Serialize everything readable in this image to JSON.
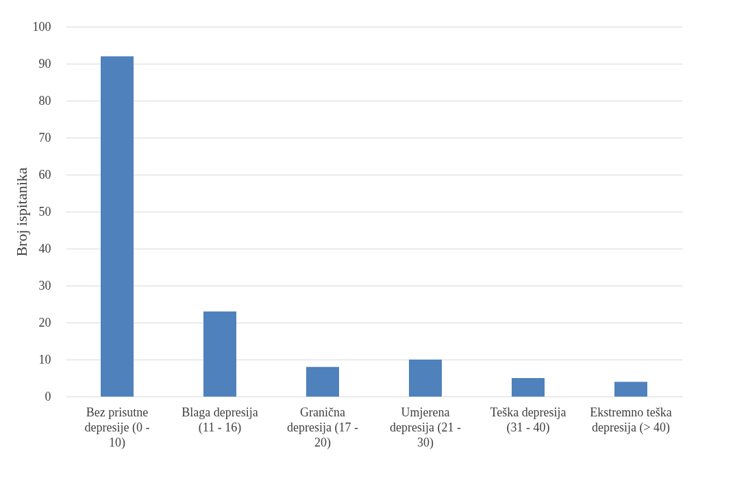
{
  "chart_data": {
    "type": "bar",
    "ylabel": "Broj ispitanika",
    "categories": [
      "Bez prisutne depresije (0 - 10)",
      "Blaga depresija (11 - 16)",
      "Granična depresija (17 - 20)",
      "Umjerena depresija (21 - 30)",
      "Teška depresija (31 - 40)",
      "Ekstremno teška depresija (> 40)"
    ],
    "values": [
      92,
      23,
      8,
      10,
      5,
      4
    ],
    "color": "#4f81bd",
    "ylim": [
      0,
      100
    ],
    "yticks": [
      0,
      10,
      20,
      30,
      40,
      50,
      60,
      70,
      80,
      90,
      100
    ],
    "grid": "y"
  }
}
